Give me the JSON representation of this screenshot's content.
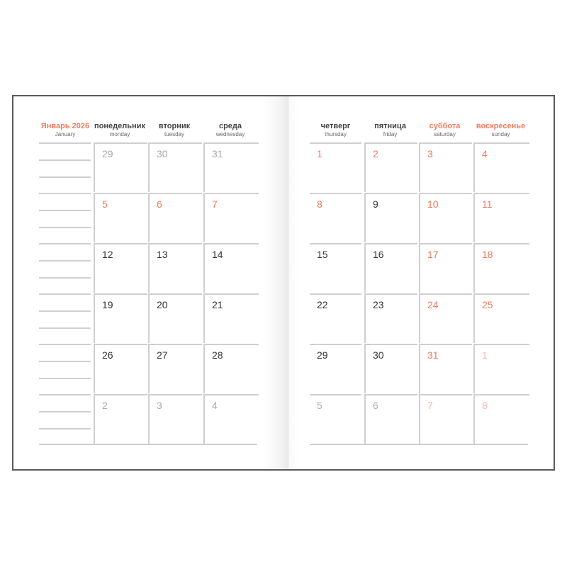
{
  "month_title": "Январь 2026",
  "month_subtitle": "January",
  "accent_color": "#f07a5e",
  "weekdays": [
    {
      "ru": "понедельник",
      "en": "monday",
      "weekend": false
    },
    {
      "ru": "вторник",
      "en": "tuesday",
      "weekend": false
    },
    {
      "ru": "среда",
      "en": "wednesday",
      "weekend": false
    },
    {
      "ru": "четверг",
      "en": "thursday",
      "weekend": false
    },
    {
      "ru": "пятница",
      "en": "friday",
      "weekend": false
    },
    {
      "ru": "суббота",
      "en": "saturday",
      "weekend": true
    },
    {
      "ru": "воскресенье",
      "en": "sunday",
      "weekend": true
    }
  ],
  "weeks": [
    [
      {
        "d": "29",
        "t": "other"
      },
      {
        "d": "30",
        "t": "other"
      },
      {
        "d": "31",
        "t": "other"
      },
      {
        "d": "1",
        "t": "holiday"
      },
      {
        "d": "2",
        "t": "holiday"
      },
      {
        "d": "3",
        "t": "holiday"
      },
      {
        "d": "4",
        "t": "holiday"
      }
    ],
    [
      {
        "d": "5",
        "t": "holiday"
      },
      {
        "d": "6",
        "t": "holiday"
      },
      {
        "d": "7",
        "t": "holiday"
      },
      {
        "d": "8",
        "t": "holiday"
      },
      {
        "d": "9",
        "t": "normal"
      },
      {
        "d": "10",
        "t": "holiday"
      },
      {
        "d": "11",
        "t": "holiday"
      }
    ],
    [
      {
        "d": "12",
        "t": "normal"
      },
      {
        "d": "13",
        "t": "normal"
      },
      {
        "d": "14",
        "t": "normal"
      },
      {
        "d": "15",
        "t": "normal"
      },
      {
        "d": "16",
        "t": "normal"
      },
      {
        "d": "17",
        "t": "holiday"
      },
      {
        "d": "18",
        "t": "holiday"
      }
    ],
    [
      {
        "d": "19",
        "t": "normal"
      },
      {
        "d": "20",
        "t": "normal"
      },
      {
        "d": "21",
        "t": "normal"
      },
      {
        "d": "22",
        "t": "normal"
      },
      {
        "d": "23",
        "t": "normal"
      },
      {
        "d": "24",
        "t": "holiday"
      },
      {
        "d": "25",
        "t": "holiday"
      }
    ],
    [
      {
        "d": "26",
        "t": "normal"
      },
      {
        "d": "27",
        "t": "normal"
      },
      {
        "d": "28",
        "t": "normal"
      },
      {
        "d": "29",
        "t": "normal"
      },
      {
        "d": "30",
        "t": "normal"
      },
      {
        "d": "31",
        "t": "holiday"
      },
      {
        "d": "1",
        "t": "otherwe"
      }
    ],
    [
      {
        "d": "2",
        "t": "other"
      },
      {
        "d": "3",
        "t": "other"
      },
      {
        "d": "4",
        "t": "other"
      },
      {
        "d": "5",
        "t": "other"
      },
      {
        "d": "6",
        "t": "other"
      },
      {
        "d": "7",
        "t": "otherwe"
      },
      {
        "d": "8",
        "t": "otherwe"
      }
    ]
  ]
}
